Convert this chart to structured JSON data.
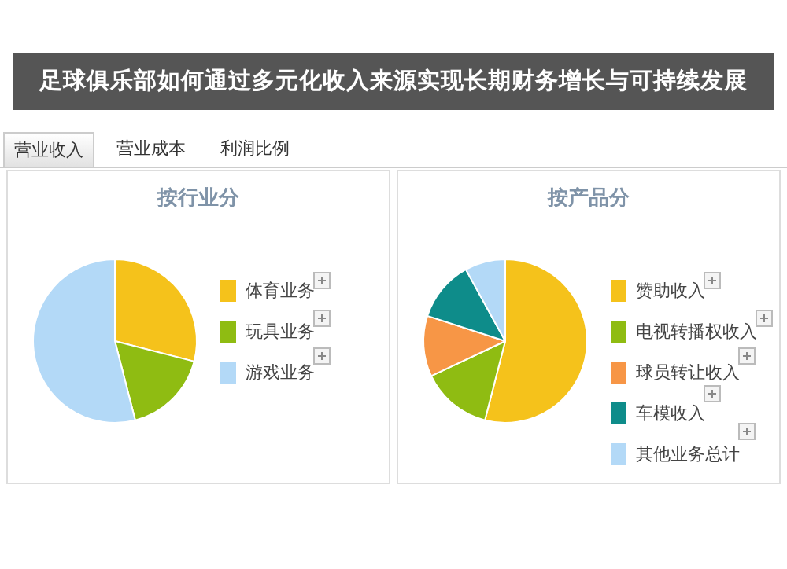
{
  "chart_data": [
    {
      "type": "pie",
      "title": "按行业分",
      "annotations": [
        "足球俱乐部如何通过多元化收入来源实现长期财务增长与可持续发展",
        "营业收入",
        "营业成本",
        "利润比例"
      ],
      "categories": [
        "体育业务",
        "玩具业务",
        "游戏业务"
      ],
      "values": [
        29,
        17,
        54
      ],
      "colors": [
        "#f5c21b",
        "#8fbc12",
        "#b3d9f7"
      ],
      "legend": "right"
    },
    {
      "type": "pie",
      "title": "按产品分",
      "categories": [
        "赞助收入",
        "电视转播权收入",
        "球员转让收入",
        "车模收入",
        "其他业务总计"
      ],
      "values": [
        54,
        14,
        12,
        12,
        8
      ],
      "colors": [
        "#f5c21b",
        "#8fbc12",
        "#f79646",
        "#0e8c8a",
        "#b3d9f7"
      ],
      "legend": "right"
    }
  ]
}
